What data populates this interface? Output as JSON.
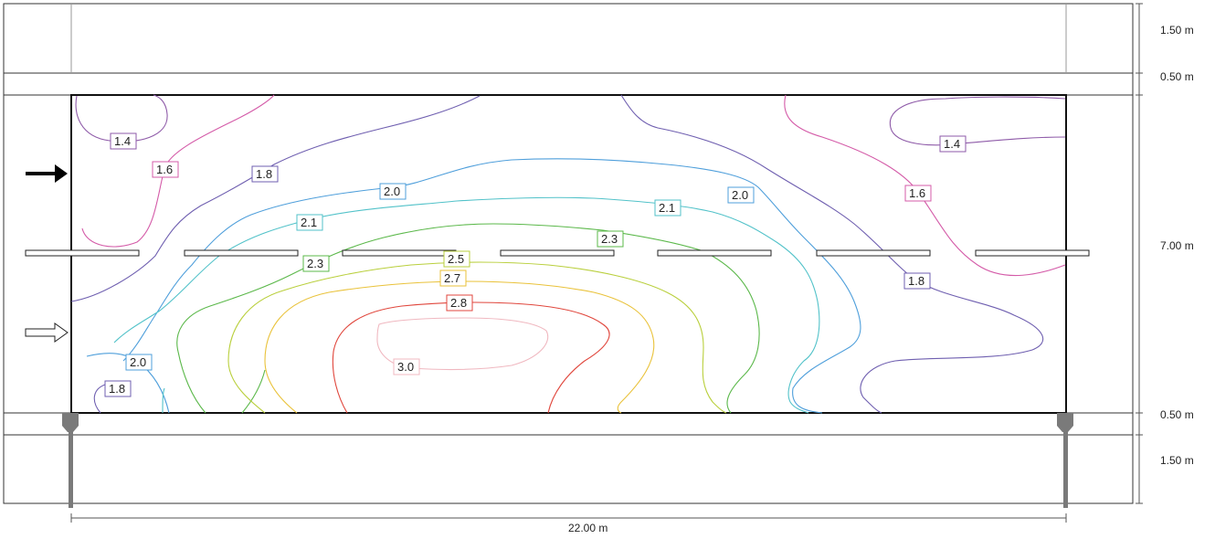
{
  "dimensions": {
    "width": "22.00 m",
    "heights": [
      "1.50 m",
      "0.50 m",
      "7.00 m",
      "0.50 m",
      "1.50 m"
    ]
  },
  "contours": [
    {
      "value": "1.4",
      "color": "#8e5aa8"
    },
    {
      "value": "1.6",
      "color": "#d45ba8"
    },
    {
      "value": "1.8",
      "color": "#6f5fb0"
    },
    {
      "value": "2.0",
      "color": "#4f9fdb"
    },
    {
      "value": "2.1",
      "color": "#52c2c9"
    },
    {
      "value": "2.3",
      "color": "#5bb84a"
    },
    {
      "value": "2.5",
      "color": "#b9cf3c"
    },
    {
      "value": "2.7",
      "color": "#e9c23a"
    },
    {
      "value": "2.8",
      "color": "#e0463c"
    },
    {
      "value": "3.0",
      "color": "#f0b8c0"
    }
  ],
  "labels": {
    "l1": "1.4",
    "l2": "1.4",
    "l3": "1.6",
    "l4": "1.6",
    "l5": "1.8",
    "l6": "1.8",
    "l7": "1.8",
    "l8": "2.0",
    "l9": "2.0",
    "l10": "2.0",
    "l11": "2.1",
    "l12": "2.1",
    "l13": "2.3",
    "l14": "2.3",
    "l15": "2.5",
    "l16": "2.7",
    "l17": "2.8",
    "l18": "3.0"
  },
  "arrows": {
    "inlet": "arrow-right-solid-icon",
    "outlet": "arrow-right-outline-icon"
  }
}
